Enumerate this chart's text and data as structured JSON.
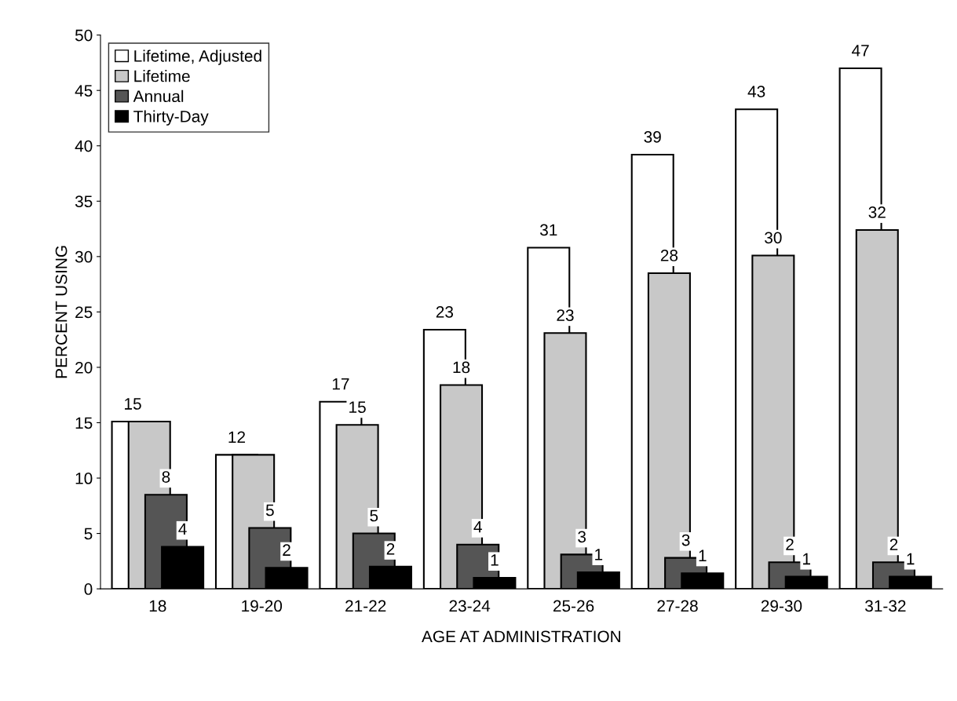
{
  "chart_data": {
    "type": "bar",
    "xlabel": "AGE AT ADMINISTRATION",
    "ylabel": "PERCENT USING",
    "categories": [
      "18",
      "19-20",
      "21-22",
      "23-24",
      "25-26",
      "27-28",
      "29-30",
      "31-32"
    ],
    "series": [
      {
        "name": "Lifetime, Adjusted",
        "color": "#ffffff",
        "values": [
          15.1,
          12.1,
          16.9,
          23.4,
          30.8,
          39.2,
          43.3,
          47.0
        ],
        "value_labels": [
          "15",
          "12",
          "17",
          "23",
          "31",
          "39",
          "43",
          "47"
        ]
      },
      {
        "name": "Lifetime",
        "color": "#c8c8c8",
        "values": [
          15.1,
          12.1,
          14.8,
          18.4,
          23.1,
          28.5,
          30.1,
          32.4
        ],
        "value_labels": [
          null,
          null,
          "15",
          "18",
          "23",
          "28",
          "30",
          "32"
        ]
      },
      {
        "name": "Annual",
        "color": "#555555",
        "values": [
          8.5,
          5.5,
          5.0,
          4.0,
          3.1,
          2.8,
          2.4,
          2.4
        ],
        "value_labels": [
          "8",
          "5",
          "5",
          "4",
          "3",
          "3",
          "2",
          "2"
        ]
      },
      {
        "name": "Thirty-Day",
        "color": "#000000",
        "values": [
          3.8,
          1.9,
          2.0,
          1.0,
          1.5,
          1.4,
          1.1,
          1.1
        ],
        "value_labels": [
          "4",
          "2",
          "2",
          "1",
          "1",
          "1",
          "1",
          "1"
        ]
      }
    ],
    "ylim": [
      0,
      50
    ],
    "yticks": [
      0,
      5,
      10,
      15,
      20,
      25,
      30,
      35,
      40,
      45,
      50
    ],
    "legend": "top left"
  }
}
